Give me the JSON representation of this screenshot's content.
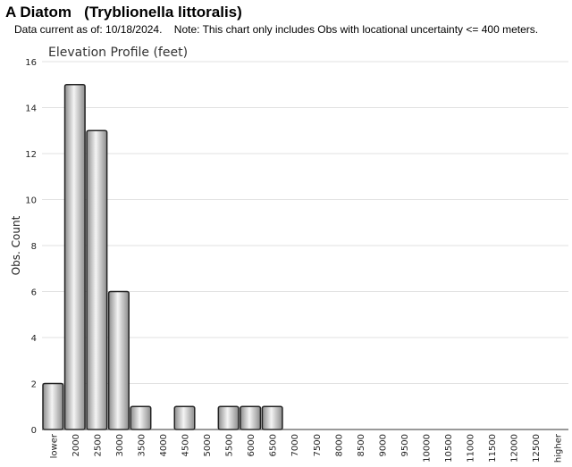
{
  "header": {
    "title": "A Diatom   (Tryblionella littoralis)",
    "note": "Data current as of: 10/18/2024.    Note: This chart only includes Obs with locational uncertainty <= 400 meters."
  },
  "colors": {
    "bar_stroke": "#222222",
    "bar_dark": "#8c8c8c",
    "bar_light": "#f4f4f4",
    "gridline": "#e2e2e2",
    "axis": "#333333"
  },
  "chart_data": {
    "type": "bar",
    "title": "Elevation Profile (feet)",
    "xlabel": "",
    "ylabel": "Obs. Count",
    "categories": [
      "lower",
      "2000",
      "2500",
      "3000",
      "3500",
      "4000",
      "4500",
      "5000",
      "5500",
      "6000",
      "6500",
      "7000",
      "7500",
      "8000",
      "8500",
      "9000",
      "9500",
      "10000",
      "10500",
      "11000",
      "11500",
      "12000",
      "12500",
      "higher"
    ],
    "values": [
      2,
      15,
      13,
      6,
      1,
      0,
      1,
      0,
      1,
      1,
      1,
      0,
      0,
      0,
      0,
      0,
      0,
      0,
      0,
      0,
      0,
      0,
      0,
      0
    ],
    "ylim": [
      0,
      16
    ],
    "yticks": [
      0,
      2,
      4,
      6,
      8,
      10,
      12,
      14,
      16
    ],
    "grid": true,
    "legend": "none"
  }
}
